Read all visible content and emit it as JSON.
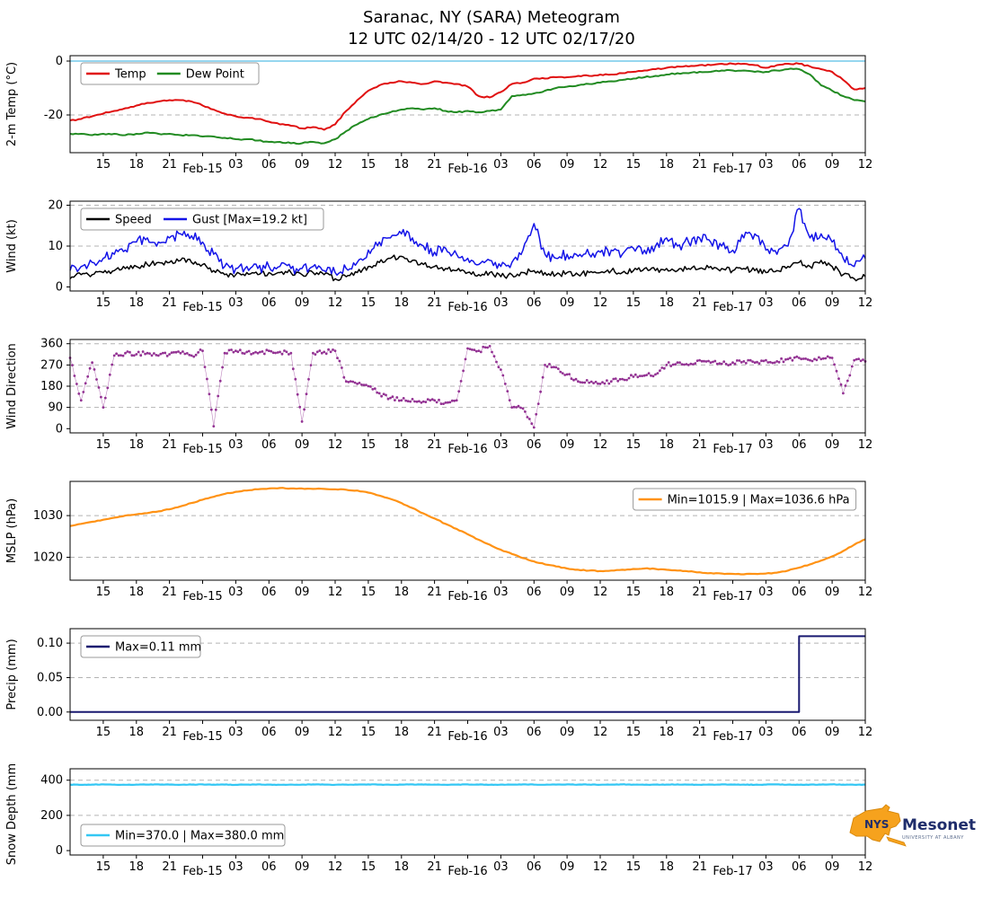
{
  "page": {
    "title_line1": "Saranac, NY (SARA) Meteogram",
    "title_line2": "12 UTC 02/14/20 - 12 UTC 02/17/20"
  },
  "x_axis": {
    "range_hours": [
      0,
      72
    ],
    "tick_step": 3,
    "tick_labels": [
      "15",
      "18",
      "21",
      "Feb-15",
      "03",
      "06",
      "09",
      "12",
      "15",
      "18",
      "21",
      "Feb-16",
      "03",
      "06",
      "09",
      "12",
      "15",
      "18",
      "21",
      "Feb-17",
      "03",
      "06",
      "09",
      "12"
    ]
  },
  "chart_data": [
    {
      "type": "line",
      "ylabel": "2-m Temp (°C)",
      "ylim": [
        -34,
        2
      ],
      "ytick_vals": [
        0,
        -20
      ],
      "ytick_labels": [
        "0",
        "-20"
      ],
      "gridlines": [
        -20
      ],
      "ref_lines": [
        {
          "y": 0,
          "color": "#74c9ea",
          "width": 1.6
        }
      ],
      "x": {
        "start_hour": 0,
        "step_hours": 1
      },
      "legend": {
        "position": "top-left"
      },
      "series": [
        {
          "name": "Temp",
          "color": "#e01010",
          "width": 2,
          "jitter": 0.25,
          "subdiv": 4,
          "values": [
            -22,
            -21.5,
            -20.5,
            -19.5,
            -18.5,
            -17.5,
            -16.5,
            -15.5,
            -15,
            -14.5,
            -14.5,
            -15,
            -16.5,
            -18,
            -19.5,
            -20.5,
            -21,
            -21.5,
            -22.5,
            -23.5,
            -24,
            -25,
            -24.5,
            -25.5,
            -23.5,
            -18.5,
            -14.5,
            -11,
            -9,
            -8,
            -7.5,
            -8,
            -8.5,
            -7.5,
            -8,
            -8.5,
            -9.5,
            -13,
            -13.5,
            -11.5,
            -8.5,
            -8,
            -6.5,
            -6.5,
            -6,
            -6,
            -5.5,
            -5.5,
            -5,
            -5,
            -4.5,
            -4,
            -3.5,
            -3,
            -2.5,
            -2,
            -2,
            -1.5,
            -1.5,
            -1,
            -1,
            -1,
            -1.5,
            -2.5,
            -1.5,
            -1,
            -1,
            -2,
            -3,
            -4,
            -7,
            -10.5,
            -10
          ]
        },
        {
          "name": "Dew Point",
          "color": "#228b22",
          "width": 2,
          "jitter": 0.25,
          "subdiv": 4,
          "values": [
            -27,
            -27,
            -27.5,
            -27,
            -27,
            -27.5,
            -27,
            -26.5,
            -27,
            -27,
            -27.5,
            -27.5,
            -28,
            -28,
            -28.5,
            -29,
            -29,
            -29.5,
            -30,
            -30,
            -30.5,
            -30.5,
            -30,
            -30.5,
            -29,
            -26,
            -23.5,
            -21.5,
            -20,
            -19,
            -18,
            -17.5,
            -18,
            -17.5,
            -18.5,
            -19,
            -18.5,
            -19,
            -18.5,
            -18,
            -13,
            -12.5,
            -12,
            -11,
            -10,
            -9.5,
            -9,
            -8.5,
            -8,
            -7.5,
            -7,
            -6.5,
            -6,
            -5.5,
            -5,
            -4.5,
            -4.5,
            -4,
            -4,
            -3.5,
            -3.5,
            -3.5,
            -4,
            -4,
            -3.5,
            -3,
            -3,
            -5,
            -9,
            -11,
            -13,
            -14.5,
            -15
          ]
        }
      ]
    },
    {
      "type": "line",
      "ylabel": "Wind (kt)",
      "ylim": [
        -1,
        21
      ],
      "ytick_vals": [
        20,
        10,
        0
      ],
      "ytick_labels": [
        "20",
        "10",
        "0"
      ],
      "gridlines": [
        10,
        20
      ],
      "x": {
        "start_hour": 0,
        "step_hours": 1
      },
      "legend": {
        "position": "top-left"
      },
      "series": [
        {
          "name": "Speed",
          "color": "#000000",
          "width": 1.5,
          "jitter": 0.7,
          "subdiv": 6,
          "clamp": [
            0,
            12
          ],
          "values": [
            2,
            3,
            3,
            3.5,
            4,
            4.5,
            5,
            5.5,
            6,
            6,
            6.5,
            6,
            5.5,
            4,
            3,
            3,
            3.5,
            3,
            3.5,
            3.5,
            3.5,
            3,
            3.5,
            3,
            2,
            2.5,
            3.5,
            5,
            6,
            7,
            7.5,
            6.5,
            5.5,
            5,
            4.5,
            4,
            3.5,
            3,
            3.5,
            2.5,
            3,
            3.5,
            4,
            3.5,
            3,
            3.5,
            3,
            3.5,
            3.5,
            4,
            3.5,
            4,
            4.5,
            4,
            4.5,
            4,
            4.5,
            4.5,
            5,
            4.5,
            4,
            4.5,
            4,
            3.5,
            4,
            5,
            6,
            5,
            6.5,
            5,
            3,
            2,
            2.5
          ]
        },
        {
          "name": "Gust [Max=19.2 kt]",
          "color": "#1414e8",
          "width": 1.5,
          "jitter": 1.3,
          "subdiv": 6,
          "clamp": [
            0,
            19.2
          ],
          "values": [
            4,
            5,
            6,
            7,
            8,
            9,
            11,
            12,
            11,
            12,
            13,
            12.5,
            11,
            8,
            5,
            4.5,
            5,
            4.5,
            5,
            5,
            4.5,
            4.5,
            5,
            4,
            3.5,
            4.5,
            6,
            9,
            11,
            12,
            13,
            12,
            10,
            8.5,
            9.5,
            8,
            7,
            5.5,
            6.5,
            5,
            6,
            9,
            15.5,
            8,
            7,
            8,
            7.5,
            8,
            8.5,
            9,
            8,
            9.5,
            9,
            10,
            12,
            10,
            11,
            12,
            11,
            10,
            9,
            12,
            13,
            9,
            8,
            10,
            19.2,
            12,
            13,
            11,
            7,
            5,
            7
          ]
        }
      ]
    },
    {
      "type": "scatter",
      "ylabel": "Wind Direction",
      "ylim": [
        -18,
        378
      ],
      "ytick_vals": [
        360,
        270,
        180,
        90,
        0
      ],
      "ytick_labels": [
        "360",
        "270",
        "180",
        "90",
        "0"
      ],
      "gridlines": [
        90,
        180,
        270,
        360
      ],
      "x": {
        "start_hour": 0,
        "step_hours": 1
      },
      "series": [
        {
          "name": "Direction",
          "color": "#933293",
          "style": "scatter",
          "jitter": 9,
          "subdiv": 5,
          "clamp": [
            0,
            360
          ],
          "values": [
            300,
            120,
            280,
            90,
            310,
            320,
            315,
            320,
            310,
            315,
            320,
            310,
            330,
            10,
            320,
            330,
            325,
            320,
            330,
            325,
            320,
            30,
            320,
            325,
            330,
            200,
            190,
            180,
            150,
            130,
            120,
            125,
            115,
            120,
            110,
            120,
            340,
            330,
            350,
            250,
            90,
            85,
            5,
            270,
            260,
            230,
            200,
            195,
            190,
            200,
            210,
            220,
            225,
            230,
            270,
            280,
            270,
            290,
            280,
            275,
            280,
            285,
            280,
            290,
            285,
            295,
            300,
            290,
            295,
            300,
            150,
            290,
            285
          ]
        }
      ]
    },
    {
      "type": "line",
      "ylabel": "MSLP (hPa)",
      "ylim": [
        1014.5,
        1038.2
      ],
      "ytick_vals": [
        1030,
        1020
      ],
      "ytick_labels": [
        "1030",
        "1020"
      ],
      "gridlines": [
        1020,
        1030
      ],
      "x": {
        "start_hour": 0,
        "step_hours": 1
      },
      "legend": {
        "position": "top-right"
      },
      "series": [
        {
          "name": "Min=1015.9 | Max=1036.6 hPa",
          "color": "#ff9214",
          "width": 2.2,
          "jitter": 0.1,
          "subdiv": 4,
          "values": [
            1027.5,
            1028,
            1028.5,
            1029,
            1029.5,
            1030,
            1030.3,
            1030.6,
            1031,
            1031.5,
            1032.2,
            1033,
            1033.8,
            1034.5,
            1035.2,
            1035.7,
            1036,
            1036.3,
            1036.5,
            1036.6,
            1036.5,
            1036.5,
            1036.4,
            1036.4,
            1036.3,
            1036.2,
            1036,
            1035.5,
            1034.8,
            1034,
            1033,
            1031.8,
            1030.5,
            1029.3,
            1028,
            1026.8,
            1025.5,
            1024.2,
            1023,
            1021.8,
            1020.8,
            1019.8,
            1019,
            1018.3,
            1017.8,
            1017.3,
            1017,
            1016.8,
            1016.7,
            1016.8,
            1017,
            1017.2,
            1017.3,
            1017.2,
            1017,
            1016.8,
            1016.6,
            1016.4,
            1016.2,
            1016.1,
            1016,
            1015.9,
            1016,
            1016.1,
            1016.3,
            1016.8,
            1017.5,
            1018.3,
            1019.2,
            1020.2,
            1021.5,
            1023,
            1024.3
          ]
        }
      ]
    },
    {
      "type": "line",
      "ylabel": "Precip (mm)",
      "ylim": [
        -0.012,
        0.121
      ],
      "ytick_vals": [
        0.1,
        0.05,
        0.0
      ],
      "ytick_labels": [
        "0.10",
        "0.05",
        "0.00"
      ],
      "gridlines": [
        0.05,
        0.1
      ],
      "x": {
        "start_hour": 0,
        "step_hours": 1
      },
      "legend": {
        "position": "top-left"
      },
      "series": [
        {
          "name": "Max=0.11 mm",
          "color": "#191970",
          "width": 2,
          "interp": "step",
          "values": [
            0,
            0,
            0,
            0,
            0,
            0,
            0,
            0,
            0,
            0,
            0,
            0,
            0,
            0,
            0,
            0,
            0,
            0,
            0,
            0,
            0,
            0,
            0,
            0,
            0,
            0,
            0,
            0,
            0,
            0,
            0,
            0,
            0,
            0,
            0,
            0,
            0,
            0,
            0,
            0,
            0,
            0,
            0,
            0,
            0,
            0,
            0,
            0,
            0,
            0,
            0,
            0,
            0,
            0,
            0,
            0,
            0,
            0,
            0,
            0,
            0,
            0,
            0,
            0,
            0,
            0,
            0.11,
            0.11,
            0.11,
            0.11,
            0.11,
            0.11,
            0.11
          ]
        }
      ]
    },
    {
      "type": "line",
      "ylabel": "Snow Depth (mm)",
      "ylim": [
        -25,
        465
      ],
      "ytick_vals": [
        400,
        200,
        0
      ],
      "ytick_labels": [
        "400",
        "200",
        "0"
      ],
      "gridlines": [
        200,
        400
      ],
      "x": {
        "start_hour": 0,
        "step_hours": 1
      },
      "legend": {
        "position": "bottom-left"
      },
      "series": [
        {
          "name": "Min=370.0 | Max=380.0 mm",
          "color": "#33c7f4",
          "width": 2.2,
          "jitter": 1.2,
          "subdiv": 6,
          "clamp": [
            370,
            380
          ],
          "values": [
            375,
            374,
            375,
            376,
            375,
            374,
            375,
            375,
            376,
            375,
            374,
            375,
            376,
            375,
            375,
            374,
            375,
            376,
            375,
            374,
            375,
            375,
            376,
            375,
            374,
            375,
            375,
            376,
            375,
            374,
            375,
            376,
            375,
            375,
            374,
            375,
            376,
            375,
            374,
            375,
            375,
            376,
            375,
            374,
            375,
            376,
            375,
            375,
            374,
            375,
            376,
            375,
            374,
            375,
            375,
            376,
            375,
            374,
            375,
            376,
            375,
            375,
            374,
            375,
            376,
            375,
            374,
            375,
            375,
            376,
            375,
            374,
            375
          ]
        }
      ]
    }
  ],
  "logo": {
    "state_text": "NYS",
    "name": "Mesonet",
    "tagline": "UNIVERSITY AT ALBANY",
    "orange": "#f6a21d",
    "navy": "#1f2d6b"
  }
}
